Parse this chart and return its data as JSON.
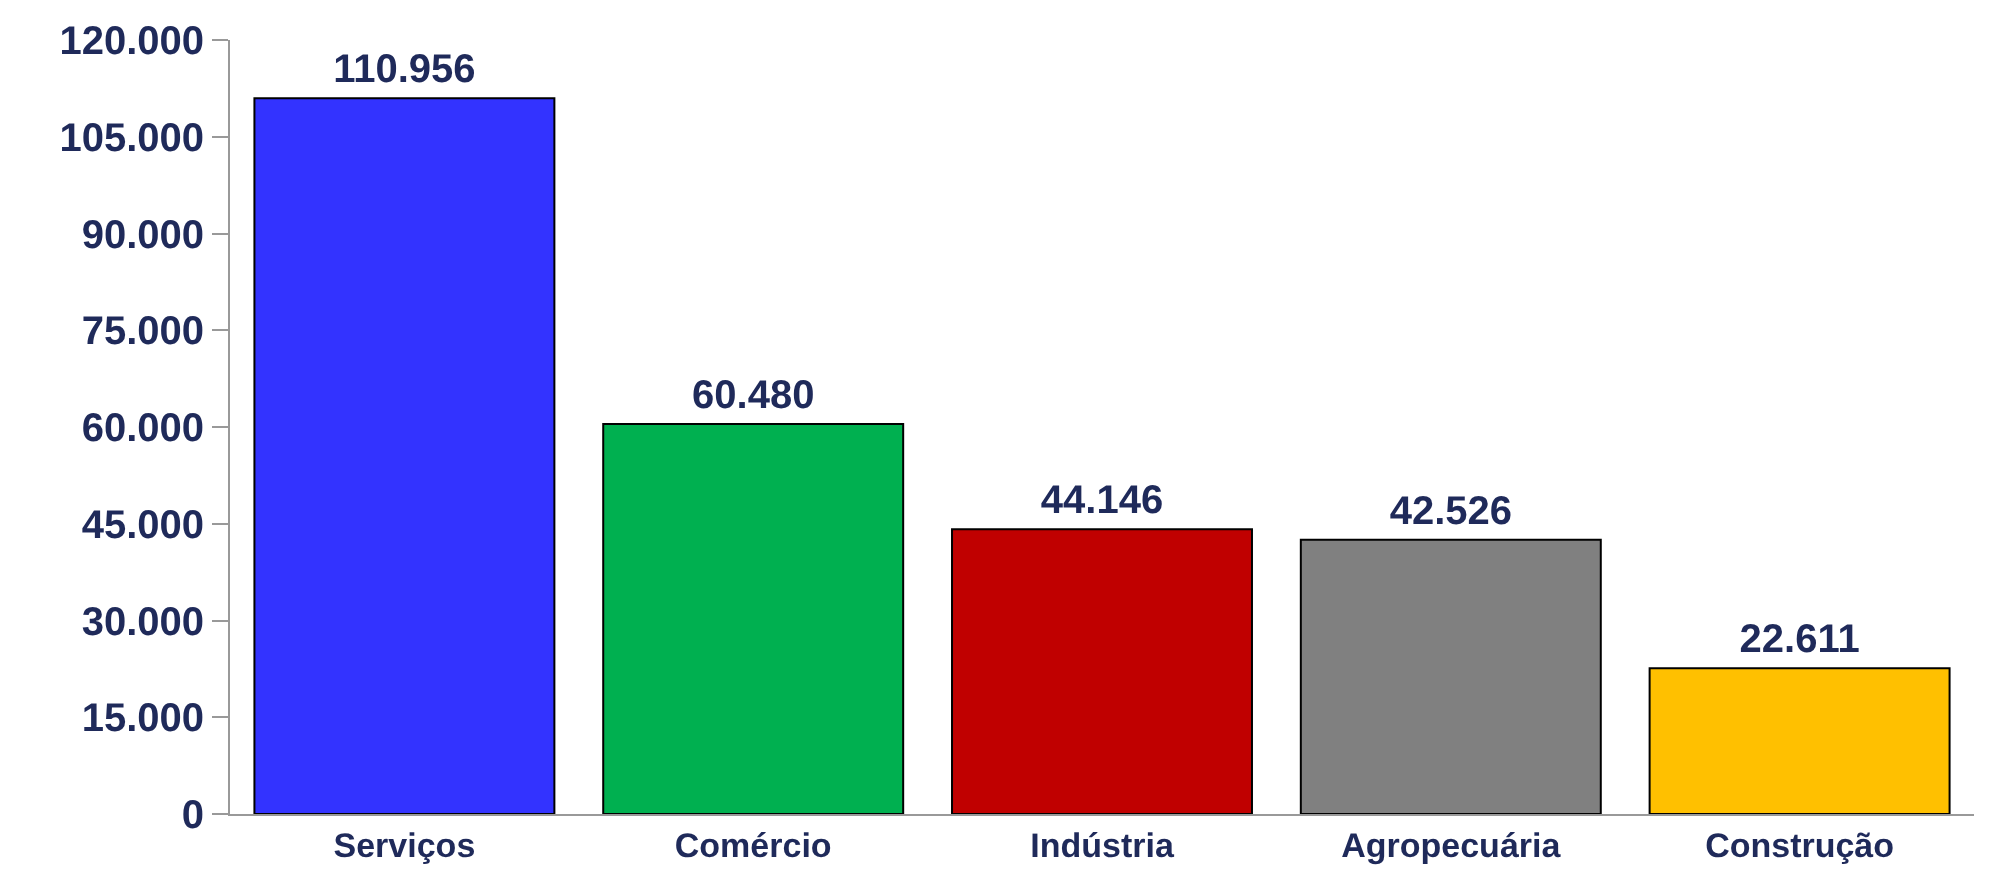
{
  "chart_data": {
    "type": "bar",
    "categories": [
      "Serviços",
      "Comércio",
      "Indústria",
      "Agropecuária",
      "Construção"
    ],
    "values": [
      110956,
      60480,
      44146,
      42526,
      22611
    ],
    "colors": [
      "#3333ff",
      "#00b050",
      "#c00000",
      "#808080",
      "#ffc000"
    ],
    "value_labels": [
      "110.956",
      "60.480",
      "44.146",
      "42.526",
      "22.611"
    ],
    "ylim": [
      0,
      120000
    ],
    "yticks": [
      {
        "value": 0,
        "label": "0"
      },
      {
        "value": 15000,
        "label": "15.000"
      },
      {
        "value": 30000,
        "label": "30.000"
      },
      {
        "value": 45000,
        "label": "45.000"
      },
      {
        "value": 60000,
        "label": "60.000"
      },
      {
        "value": 75000,
        "label": "75.000"
      },
      {
        "value": 90000,
        "label": "90.000"
      },
      {
        "value": 105000,
        "label": "105.000"
      },
      {
        "value": 120000,
        "label": "120.000"
      }
    ],
    "legend": false
  }
}
